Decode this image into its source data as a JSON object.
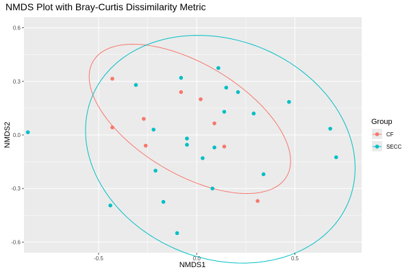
{
  "chart_data": {
    "type": "scatter",
    "title": "NMDS Plot with Bray-Curtis Dissimilarity Metric",
    "xlabel": "NMDS1",
    "ylabel": "NMDS2",
    "xlim": [
      -0.88,
      0.84
    ],
    "ylim": [
      -0.66,
      0.66
    ],
    "x_ticks": [
      -0.5,
      0.0,
      0.5
    ],
    "x_tick_labels": [
      "-0.5",
      "0.0",
      "0.5"
    ],
    "y_ticks": [
      -0.6,
      -0.3,
      0.0,
      0.3,
      0.6
    ],
    "y_tick_labels": [
      "-0.6",
      "-0.3",
      "0.0",
      "0.3",
      "0.6"
    ],
    "grid": true,
    "legend": {
      "title": "Group",
      "position": "right"
    },
    "series": [
      {
        "name": "CF",
        "color": "#F8766D",
        "points": [
          {
            "x": -0.43,
            "y": 0.315
          },
          {
            "x": -0.43,
            "y": 0.042
          },
          {
            "x": -0.27,
            "y": 0.09
          },
          {
            "x": -0.26,
            "y": -0.06
          },
          {
            "x": -0.08,
            "y": 0.24
          },
          {
            "x": 0.02,
            "y": 0.2
          },
          {
            "x": 0.09,
            "y": 0.065
          },
          {
            "x": 0.14,
            "y": -0.065
          },
          {
            "x": 0.31,
            "y": -0.37
          }
        ],
        "ellipse": {
          "center": [
            -0.035,
            0.09
          ],
          "semi_axes": [
            0.59,
            0.3
          ],
          "angle_deg": -35
        }
      },
      {
        "name": "SECC",
        "color": "#00BFC4",
        "points": [
          {
            "x": -0.86,
            "y": 0.015
          },
          {
            "x": -0.31,
            "y": 0.28
          },
          {
            "x": -0.08,
            "y": 0.32
          },
          {
            "x": 0.11,
            "y": 0.375
          },
          {
            "x": 0.15,
            "y": 0.265
          },
          {
            "x": 0.21,
            "y": 0.24
          },
          {
            "x": 0.47,
            "y": 0.185
          },
          {
            "x": 0.14,
            "y": 0.13
          },
          {
            "x": 0.29,
            "y": 0.12
          },
          {
            "x": -0.22,
            "y": 0.03
          },
          {
            "x": -0.05,
            "y": -0.02
          },
          {
            "x": -0.05,
            "y": -0.055
          },
          {
            "x": 0.09,
            "y": -0.07
          },
          {
            "x": 0.03,
            "y": -0.13
          },
          {
            "x": -0.21,
            "y": -0.2
          },
          {
            "x": 0.34,
            "y": -0.22
          },
          {
            "x": 0.68,
            "y": 0.035
          },
          {
            "x": 0.71,
            "y": -0.125
          },
          {
            "x": 0.08,
            "y": -0.3
          },
          {
            "x": -0.17,
            "y": -0.375
          },
          {
            "x": -0.44,
            "y": -0.395
          },
          {
            "x": -0.1,
            "y": -0.55
          }
        ],
        "ellipse": {
          "center": [
            0.12,
            -0.08
          ],
          "semi_axes": [
            0.72,
            0.6
          ],
          "angle_deg": -33
        }
      }
    ]
  }
}
